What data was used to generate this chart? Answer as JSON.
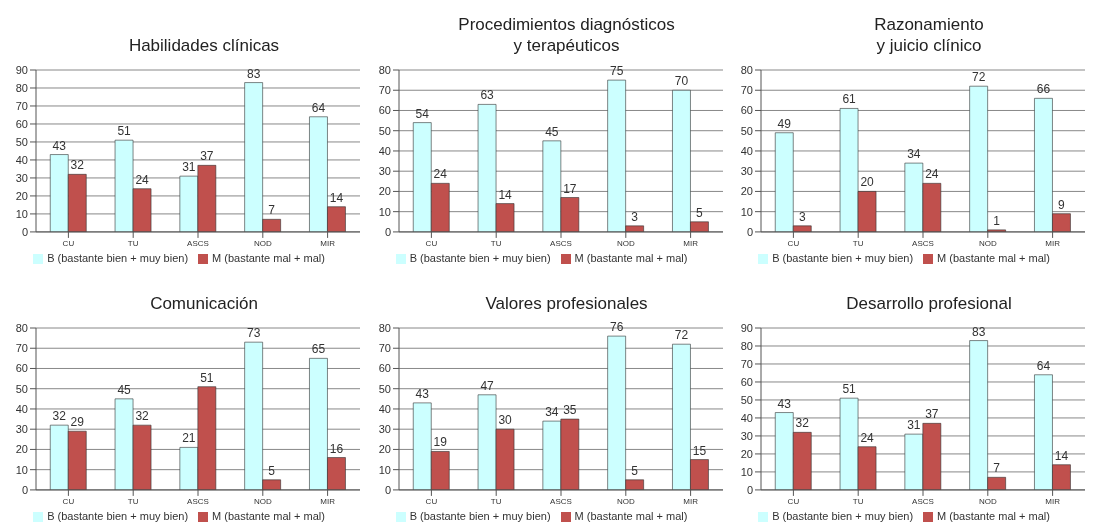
{
  "chart_data": [
    {
      "type": "bar",
      "title": "Habilidades clínicas",
      "categories": [
        "CU",
        "TU",
        "ASCS",
        "NOD",
        "MIR"
      ],
      "series": [
        {
          "name": "B (bastante bien + muy bien)",
          "color": "#ccffff",
          "values": [
            43,
            51,
            31,
            83,
            64
          ]
        },
        {
          "name": "M (bastante mal + mal)",
          "color": "#c0504d",
          "values": [
            32,
            24,
            37,
            7,
            14
          ]
        }
      ],
      "ylim": [
        0,
        90
      ],
      "yticks": [
        0,
        10,
        20,
        30,
        40,
        50,
        60,
        70,
        80,
        90
      ],
      "grid": "y",
      "legend": "bottom",
      "data_labels": true
    },
    {
      "type": "bar",
      "title": "Procedimientos diagnósticos\ny terapéuticos",
      "categories": [
        "CU",
        "TU",
        "ASCS",
        "NOD",
        "MIR"
      ],
      "series": [
        {
          "name": "B (bastante bien + muy bien)",
          "color": "#ccffff",
          "values": [
            54,
            63,
            45,
            75,
            70
          ]
        },
        {
          "name": "M (bastante mal + mal)",
          "color": "#c0504d",
          "values": [
            24,
            14,
            17,
            3,
            5
          ]
        }
      ],
      "ylim": [
        0,
        80
      ],
      "yticks": [
        0,
        10,
        20,
        30,
        40,
        50,
        60,
        70,
        80
      ],
      "grid": "y",
      "legend": "bottom",
      "data_labels": true
    },
    {
      "type": "bar",
      "title": "Razonamiento\ny juicio clínico",
      "categories": [
        "CU",
        "TU",
        "ASCS",
        "NOD",
        "MIR"
      ],
      "series": [
        {
          "name": "B (bastante bien + muy bien)",
          "color": "#ccffff",
          "values": [
            49,
            61,
            34,
            72,
            66
          ]
        },
        {
          "name": "M (bastante mal + mal)",
          "color": "#c0504d",
          "values": [
            3,
            20,
            24,
            1,
            9
          ]
        }
      ],
      "ylim": [
        0,
        80
      ],
      "yticks": [
        0,
        10,
        20,
        30,
        40,
        50,
        60,
        70,
        80
      ],
      "grid": "y",
      "legend": "bottom",
      "data_labels": true
    },
    {
      "type": "bar",
      "title": "Comunicación",
      "categories": [
        "CU",
        "TU",
        "ASCS",
        "NOD",
        "MIR"
      ],
      "series": [
        {
          "name": "B (bastante bien + muy bien)",
          "color": "#ccffff",
          "values": [
            32,
            45,
            21,
            73,
            65
          ]
        },
        {
          "name": "M (bastante mal + mal)",
          "color": "#c0504d",
          "values": [
            29,
            32,
            51,
            5,
            16
          ]
        }
      ],
      "ylim": [
        0,
        80
      ],
      "yticks": [
        0,
        10,
        20,
        30,
        40,
        50,
        60,
        70,
        80
      ],
      "grid": "y",
      "legend": "bottom",
      "data_labels": true
    },
    {
      "type": "bar",
      "title": "Valores profesionales",
      "categories": [
        "CU",
        "TU",
        "ASCS",
        "NOD",
        "MIR"
      ],
      "series": [
        {
          "name": "B (bastante bien + muy bien)",
          "color": "#ccffff",
          "values": [
            43,
            47,
            34,
            76,
            72
          ]
        },
        {
          "name": "M (bastante mal + mal)",
          "color": "#c0504d",
          "values": [
            19,
            30,
            35,
            5,
            15
          ]
        }
      ],
      "ylim": [
        0,
        80
      ],
      "yticks": [
        0,
        10,
        20,
        30,
        40,
        50,
        60,
        70,
        80
      ],
      "grid": "y",
      "legend": "bottom",
      "data_labels": true
    },
    {
      "type": "bar",
      "title": "Desarrollo profesional",
      "categories": [
        "CU",
        "TU",
        "ASCS",
        "NOD",
        "MIR"
      ],
      "series": [
        {
          "name": "B (bastante bien + muy bien)",
          "color": "#ccffff",
          "values": [
            43,
            51,
            31,
            83,
            64
          ]
        },
        {
          "name": "M (bastante mal + mal)",
          "color": "#c0504d",
          "values": [
            32,
            24,
            37,
            7,
            14
          ]
        }
      ],
      "ylim": [
        0,
        90
      ],
      "yticks": [
        0,
        10,
        20,
        30,
        40,
        50,
        60,
        70,
        80,
        90
      ],
      "grid": "y",
      "legend": "bottom",
      "data_labels": true
    }
  ]
}
